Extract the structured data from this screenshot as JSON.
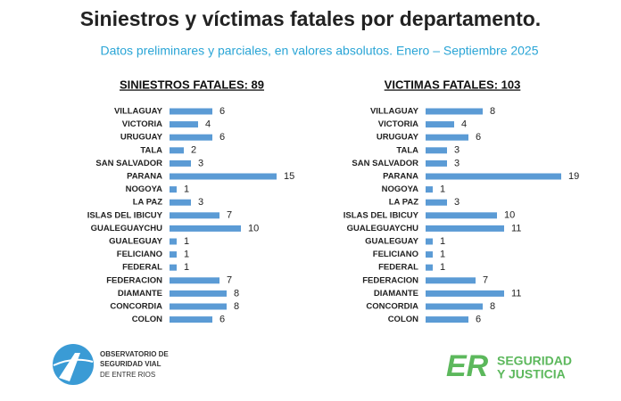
{
  "header": {
    "title": "Siniestros y víctimas fatales por departamento.",
    "subtitle": "Datos preliminares y parciales, en valores absolutos. Enero – Septiembre 2025"
  },
  "chart_data": [
    {
      "type": "bar",
      "title": "SINIESTROS FATALES: 89",
      "color": "#5b9bd5",
      "categories": [
        "VILLAGUAY",
        "VICTORIA",
        "URUGUAY",
        "TALA",
        "SAN SALVADOR",
        "PARANA",
        "NOGOYA",
        "LA PAZ",
        "ISLAS DEL IBICUY",
        "GUALEGUAYCHU",
        "GUALEGUAY",
        "FELICIANO",
        "FEDERAL",
        "FEDERACION",
        "DIAMANTE",
        "CONCORDIA",
        "COLON"
      ],
      "values": [
        6,
        4,
        6,
        2,
        3,
        15,
        1,
        3,
        7,
        10,
        1,
        1,
        1,
        7,
        8,
        8,
        6
      ]
    },
    {
      "type": "bar",
      "title": "VICTIMAS FATALES: 103",
      "color": "#5b9bd5",
      "categories": [
        "VILLAGUAY",
        "VICTORIA",
        "URUGUAY",
        "TALA",
        "SAN SALVADOR",
        "PARANA",
        "NOGOYA",
        "LA PAZ",
        "ISLAS DEL IBICUY",
        "GUALEGUAYCHU",
        "GUALEGUAY",
        "FELICIANO",
        "FEDERAL",
        "FEDERACION",
        "DIAMANTE",
        "CONCORDIA",
        "COLON"
      ],
      "values": [
        8,
        4,
        6,
        3,
        3,
        19,
        1,
        3,
        10,
        11,
        1,
        1,
        1,
        7,
        11,
        8,
        6
      ]
    }
  ],
  "footer": {
    "observatory": [
      "OBSERVATORIO DE",
      "SEGURIDAD VIAL",
      "DE ENTRE RIOS"
    ],
    "brand_mark": "ER",
    "brand": [
      "SEGURIDAD",
      "Y JUSTICIA"
    ]
  }
}
